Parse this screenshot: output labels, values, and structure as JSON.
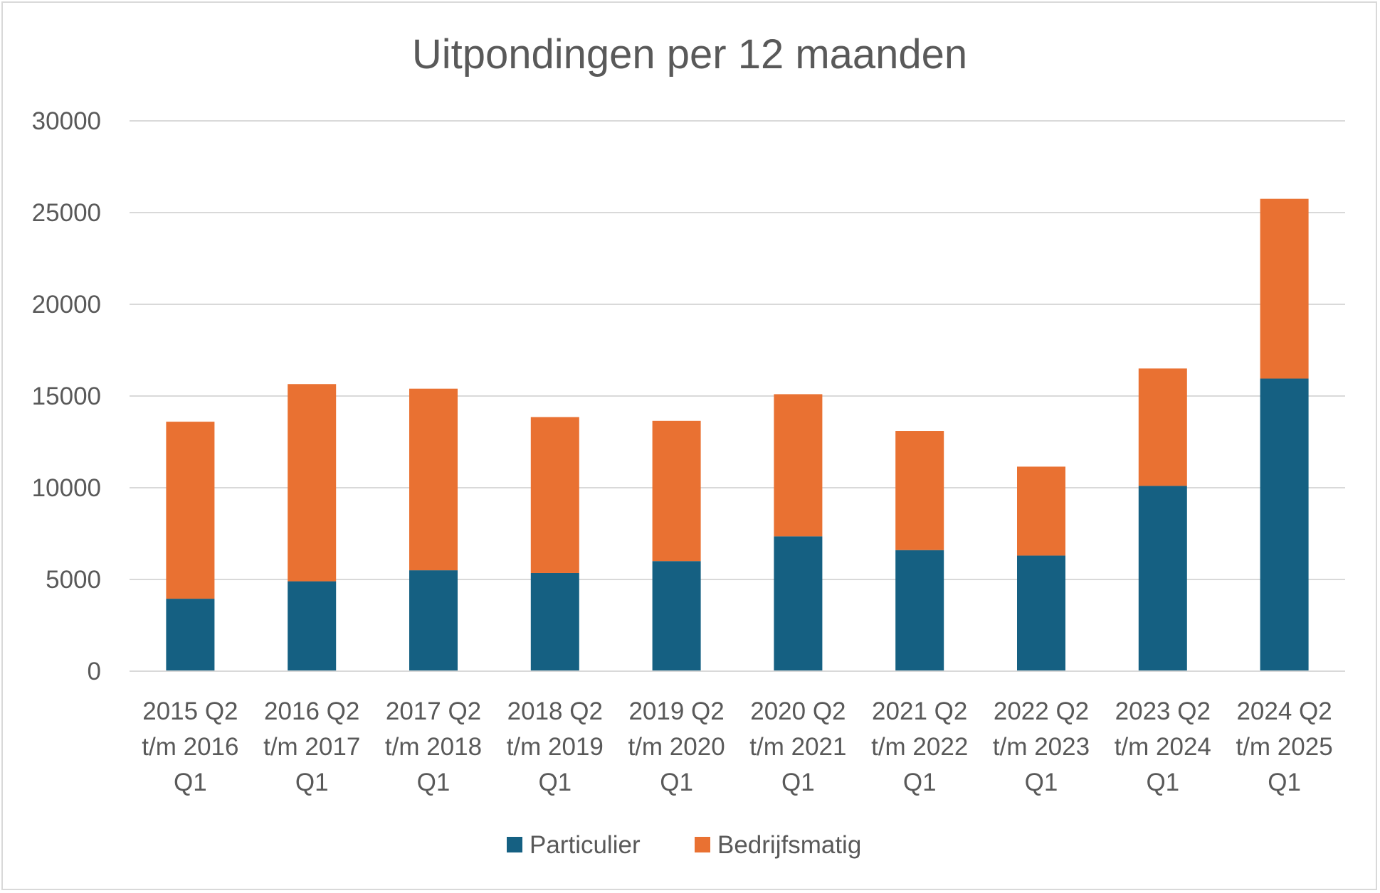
{
  "chart_data": {
    "type": "bar",
    "stacked": true,
    "title": "Uitpondingen per 12 maanden",
    "xlabel": "",
    "ylabel": "",
    "ylim": [
      0,
      30000
    ],
    "yticks": [
      0,
      5000,
      10000,
      15000,
      20000,
      25000,
      30000
    ],
    "grid": true,
    "legend_position": "bottom",
    "categories": [
      [
        "2015 Q2",
        "t/m 2016",
        "Q1"
      ],
      [
        "2016 Q2",
        "t/m 2017",
        "Q1"
      ],
      [
        "2017 Q2",
        "t/m 2018",
        "Q1"
      ],
      [
        "2018 Q2",
        "t/m 2019",
        "Q1"
      ],
      [
        "2019 Q2",
        "t/m 2020",
        "Q1"
      ],
      [
        "2020 Q2",
        "t/m 2021",
        "Q1"
      ],
      [
        "2021 Q2",
        "t/m 2022",
        "Q1"
      ],
      [
        "2022 Q2",
        "t/m 2023",
        "Q1"
      ],
      [
        "2023 Q2",
        "t/m 2024",
        "Q1"
      ],
      [
        "2024 Q2",
        "t/m 2025",
        "Q1"
      ]
    ],
    "series": [
      {
        "name": "Particulier",
        "color": "#156082",
        "values": [
          3950,
          4900,
          5500,
          5350,
          6000,
          7350,
          6600,
          6300,
          10100,
          15950
        ]
      },
      {
        "name": "Bedrijfsmatig",
        "color": "#E97132",
        "values": [
          9650,
          10750,
          9900,
          8500,
          7650,
          7750,
          6500,
          4850,
          6400,
          9800
        ]
      }
    ]
  }
}
